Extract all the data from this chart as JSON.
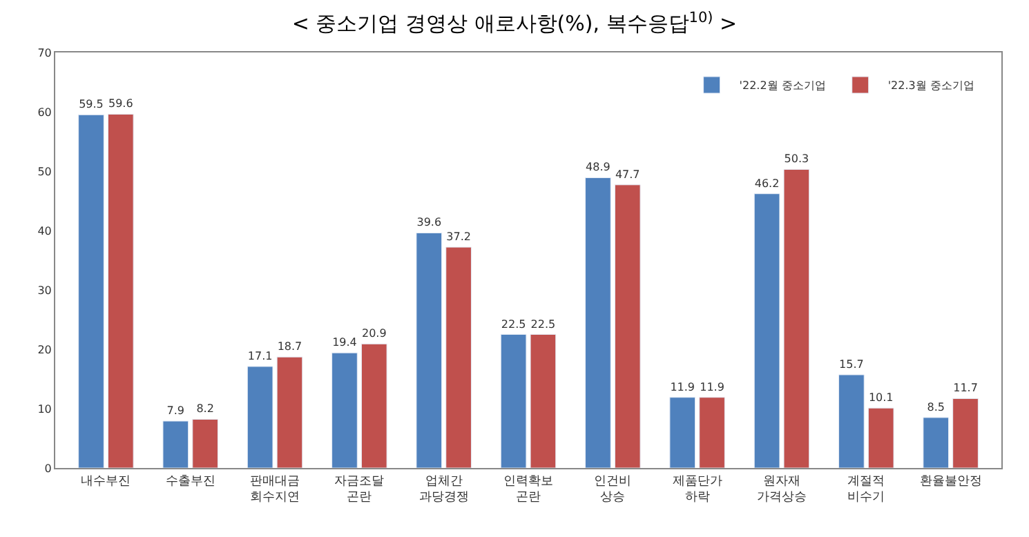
{
  "chart_data": {
    "type": "bar",
    "title": "< 중소기업 경영상 애로사항(%), 복수응답$^{10)}$ >",
    "categories": [
      "내수부진",
      "수출부진",
      "판매대금\n회수지연",
      "자금조달\n곤란",
      "업체간\n과당경쟁",
      "인력확보\n곤란",
      "인건비\n상승",
      "제품단가\n하락",
      "원자재\n가격상승",
      "계절적\n비수기",
      "환율불안정"
    ],
    "series": [
      {
        "name": "'22.2월 중소기업",
        "color": "#4f81bd",
        "values": [
          59.5,
          7.9,
          17.1,
          19.4,
          39.6,
          22.5,
          48.9,
          11.9,
          46.2,
          15.7,
          8.5
        ]
      },
      {
        "name": "'22.3월 중소기업",
        "color": "#c0504d",
        "values": [
          59.6,
          8.2,
          18.7,
          20.9,
          37.2,
          22.5,
          47.7,
          11.9,
          50.3,
          10.1,
          11.7
        ]
      }
    ],
    "ylim": [
      0,
      70
    ],
    "yticks": [
      0,
      10,
      20,
      30,
      40,
      50,
      60,
      70
    ],
    "grid": false,
    "legend": "top right",
    "data_labels": true
  }
}
